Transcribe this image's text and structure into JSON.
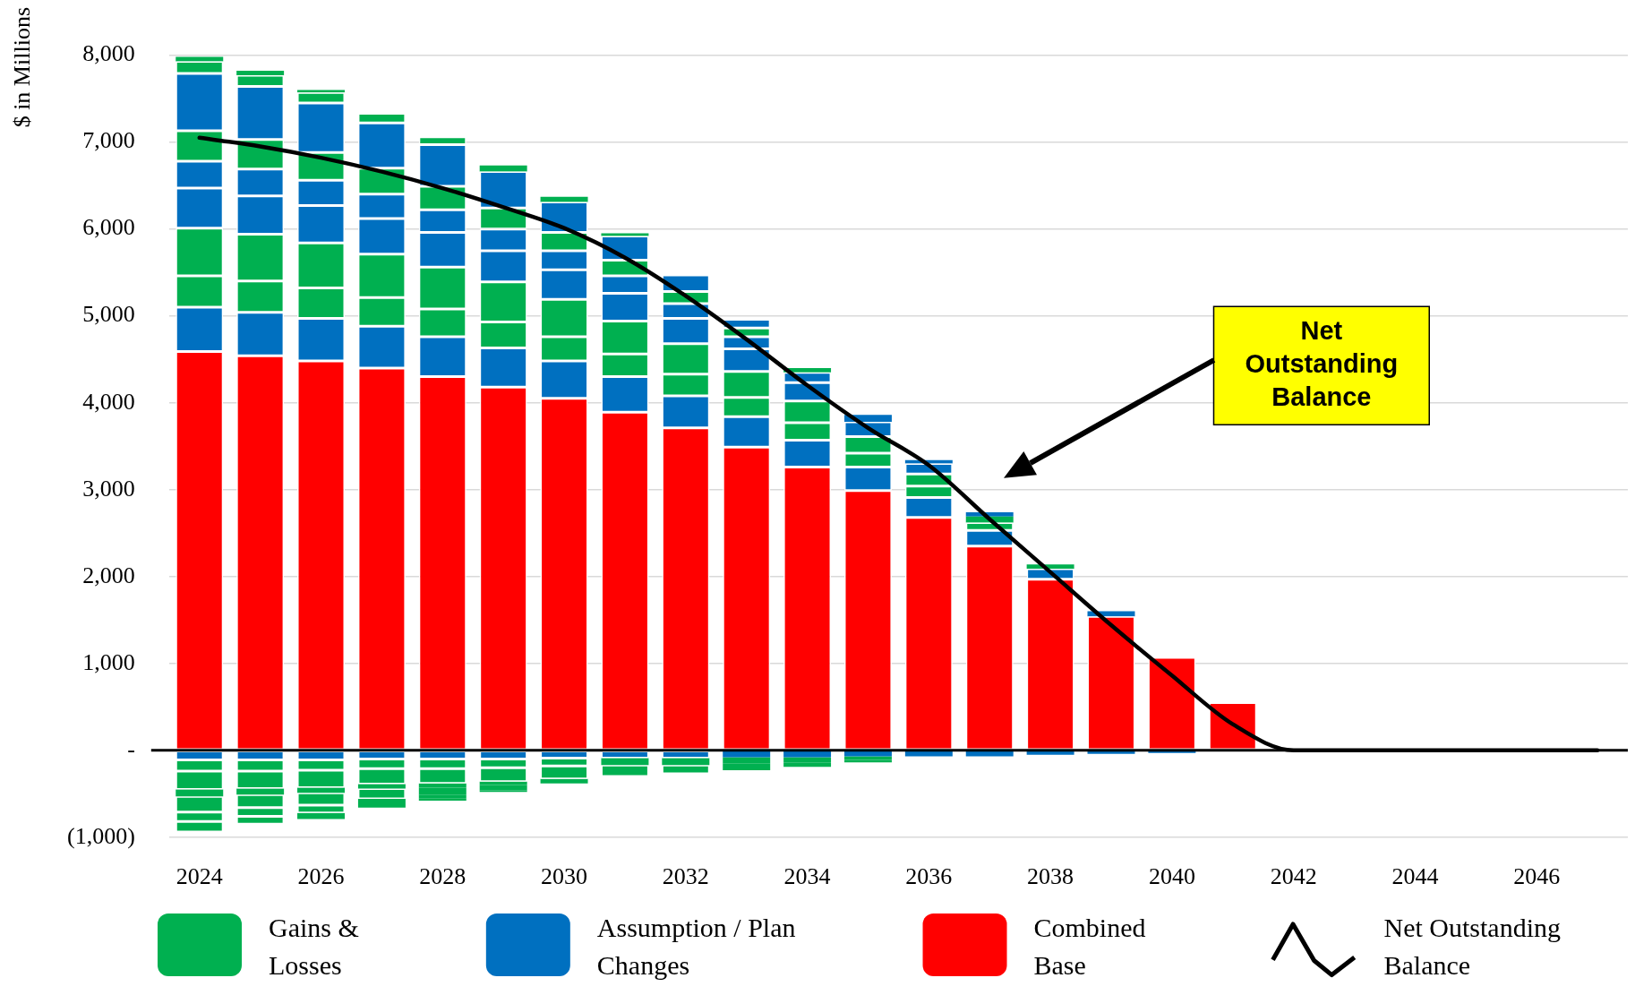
{
  "chart_data": {
    "type": "bar",
    "stacked": true,
    "ylabel": "$ in Millions",
    "categories": [
      "2024",
      null,
      "2026",
      null,
      "2028",
      null,
      "2030",
      null,
      "2032",
      null,
      "2034",
      null,
      "2036",
      null,
      "2038",
      null,
      "2040",
      null,
      "2042",
      null,
      "2044",
      null,
      "2046",
      null
    ],
    "ylim": [
      -1000,
      8000
    ],
    "yticks": [
      {
        "value": -1000,
        "label": "(1,000)"
      },
      {
        "value": 0,
        "label": "-"
      },
      {
        "value": 1000,
        "label": "1,000"
      },
      {
        "value": 2000,
        "label": "2,000"
      },
      {
        "value": 3000,
        "label": "3,000"
      },
      {
        "value": 4000,
        "label": "4,000"
      },
      {
        "value": 5000,
        "label": "5,000"
      },
      {
        "value": 6000,
        "label": "6,000"
      },
      {
        "value": 7000,
        "label": "7,000"
      },
      {
        "value": 8000,
        "label": "8,000"
      }
    ],
    "grid": "y",
    "legend": "bottom",
    "annotations": [
      "Net Outstanding Balance"
    ],
    "ref_lines": [
      {
        "axis": "y",
        "value": 0,
        "color": "#000000"
      }
    ],
    "series": [
      {
        "name": "Net Outstanding Balance",
        "type": "line",
        "color": "#000000",
        "values": [
          7050,
          6950,
          6820,
          6660,
          6470,
          6250,
          6010,
          5670,
          5230,
          4730,
          4200,
          3710,
          3280,
          2660,
          2050,
          1440,
          860,
          300,
          0,
          0,
          0,
          0,
          0,
          0
        ]
      },
      {
        "name": "Combined Base",
        "color": "#ff0000",
        "values": [
          4590,
          4540,
          4480,
          4400,
          4300,
          4180,
          4050,
          3890,
          3710,
          3490,
          3260,
          2990,
          2680,
          2350,
          1970,
          1540,
          1070,
          550,
          null,
          null,
          null,
          null,
          null,
          null
        ]
      },
      {
        "name": "Assumption / Plan Changes",
        "color": "#0070c0",
        "values": [
          510,
          500,
          490,
          480,
          460,
          450,
          430,
          410,
          370,
          350,
          310,
          270,
          230,
          180,
          120,
          60,
          null,
          null,
          null,
          null,
          null,
          null,
          null,
          null
        ]
      },
      {
        "name": "Gains & Losses",
        "color": "#00b050",
        "values": [
          360,
          360,
          350,
          330,
          320,
          300,
          280,
          260,
          250,
          220,
          200,
          160,
          130,
          90,
          50,
          null,
          null,
          null,
          null,
          null,
          null,
          null,
          null,
          null
        ]
      },
      {
        "color": "#00b050",
        "values": [
          550,
          540,
          520,
          500,
          480,
          460,
          430,
          380,
          350,
          300,
          250,
          190,
          140,
          70,
          null,
          null,
          null,
          null,
          null,
          null,
          null,
          null,
          null,
          null
        ]
      },
      {
        "color": "#0070c0",
        "values": [
          460,
          440,
          430,
          410,
          400,
          360,
          340,
          320,
          290,
          260,
          210,
          170,
          120,
          50,
          null,
          null,
          null,
          null,
          null,
          null,
          null,
          null,
          null,
          null
        ]
      },
      {
        "color": "#0070c0",
        "values": [
          310,
          310,
          290,
          280,
          260,
          250,
          220,
          200,
          170,
          140,
          120,
          80,
          40,
          null,
          null,
          null,
          null,
          null,
          null,
          null,
          null,
          null,
          null,
          null
        ]
      },
      {
        "color": "#00b050",
        "values": [
          350,
          340,
          320,
          300,
          270,
          240,
          210,
          180,
          140,
          100,
          50,
          null,
          null,
          null,
          null,
          null,
          null,
          null,
          null,
          null,
          null,
          null,
          null,
          null
        ]
      },
      {
        "color": "#0070c0",
        "values": [
          660,
          610,
          570,
          520,
          480,
          420,
          350,
          280,
          190,
          100,
          null,
          null,
          null,
          null,
          null,
          null,
          null,
          null,
          null,
          null,
          null,
          null,
          null,
          null
        ]
      },
      {
        "color": "#00b050",
        "values": [
          140,
          130,
          120,
          110,
          90,
          70,
          60,
          30,
          null,
          null,
          null,
          null,
          null,
          null,
          null,
          null,
          null,
          null,
          null,
          null,
          null,
          null,
          null,
          null
        ]
      },
      {
        "color": "#00b050",
        "values": [
          50,
          50,
          30,
          null,
          null,
          null,
          null,
          null,
          null,
          null,
          null,
          null,
          null,
          null,
          null,
          null,
          null,
          null,
          null,
          null,
          null,
          null,
          null,
          null
        ]
      },
      {
        "color": "#0070c0",
        "values": [
          -110,
          -110,
          -110,
          -100,
          -100,
          -100,
          -90,
          -90,
          -90,
          -80,
          -80,
          -70,
          -70,
          -70,
          -50,
          -40,
          -30,
          null,
          null,
          null,
          null,
          null,
          null,
          null
        ]
      },
      {
        "color": "#00b050",
        "values": [
          -130,
          -130,
          -120,
          -110,
          -110,
          -100,
          -90,
          -80,
          -80,
          -70,
          -60,
          -40,
          null,
          null,
          null,
          null,
          null,
          null,
          null,
          null,
          null,
          null,
          null,
          null
        ]
      },
      {
        "color": "#00b050",
        "values": [
          -210,
          -200,
          -200,
          -180,
          -170,
          -160,
          -150,
          -130,
          -100,
          -80,
          -50,
          -30,
          null,
          null,
          null,
          null,
          null,
          null,
          null,
          null,
          null,
          null,
          null,
          null
        ]
      },
      {
        "color": "#00b050",
        "values": [
          -80,
          -70,
          -60,
          -50,
          -50,
          -40,
          -50,
          null,
          null,
          null,
          null,
          null,
          null,
          null,
          null,
          null,
          null,
          null,
          null,
          null,
          null,
          null,
          null,
          null
        ]
      },
      {
        "color": "#00b050",
        "values": [
          -180,
          -150,
          -140,
          -120,
          -80,
          -60,
          null,
          null,
          null,
          null,
          null,
          null,
          null,
          null,
          null,
          null,
          null,
          null,
          null,
          null,
          null,
          null,
          null,
          null
        ]
      },
      {
        "color": "#00b050",
        "values": [
          -110,
          -100,
          -90,
          -60,
          -40,
          -20,
          null,
          null,
          null,
          null,
          null,
          null,
          null,
          null,
          null,
          null,
          null,
          null,
          null,
          null,
          null,
          null,
          null,
          null
        ]
      },
      {
        "color": "#00b050",
        "values": [
          -120,
          -90,
          -70,
          -40,
          -30,
          null,
          null,
          null,
          null,
          null,
          null,
          null,
          null,
          null,
          null,
          null,
          null,
          null,
          null,
          null,
          null,
          null,
          null,
          null
        ]
      }
    ]
  }
}
